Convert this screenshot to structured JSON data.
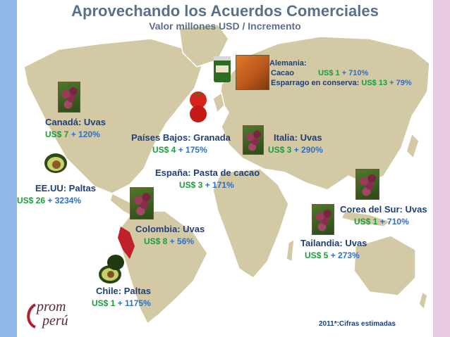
{
  "header": {
    "title": "Aprovechando los Acuerdos Comerciales",
    "subtitle": "Valor millones USD / Incremento"
  },
  "markets": {
    "canada": {
      "name": "Canadá: Uvas",
      "usd": "US$ 7",
      "inc": "+ 120%"
    },
    "eeuu": {
      "name": "EE.UU: Paltas",
      "usd": "US$ 26",
      "inc": "+ 3234%"
    },
    "paises_bajos": {
      "name": "Países Bajos: Granada",
      "usd": "US$ 4",
      "inc": "+ 175%"
    },
    "espana": {
      "name": "España: Pasta de cacao",
      "usd": "US$ 3",
      "inc": "+ 171%"
    },
    "italia": {
      "name": "Italia: Uvas",
      "usd": "US$ 3",
      "inc": "+ 290%"
    },
    "alemania": {
      "name": "Alemania:",
      "cacao_label": "Cacao",
      "cacao_usd": "US$ 1",
      "cacao_inc": "+ 710%",
      "esparrago_label": "Esparrago en conserva:",
      "esparrago_usd": "US$ 13",
      "esparrago_inc": "+ 79%"
    },
    "colombia": {
      "name": "Colombia: Uvas",
      "usd": "US$ 8",
      "inc": "+ 56%"
    },
    "corea": {
      "name": "Corea del Sur: Uvas",
      "usd": "US$ 1",
      "inc": "+ 710%"
    },
    "tailandia": {
      "name": "Tailandia: Uvas",
      "usd": "US$ 5",
      "inc": "+ 273%"
    },
    "chile": {
      "name": "Chile: Paltas",
      "usd": "US$ 1",
      "inc": "+ 1175%"
    }
  },
  "footer": {
    "logo_line1": "prom",
    "logo_line2": "perú",
    "note": "2011*:Cifras estimadas"
  },
  "colors": {
    "map_land": "#d3c9a4",
    "map_border": "#ffffff",
    "title": "#5a6f8a",
    "country": "#1f3f7a",
    "usd": "#1a9e3a",
    "increment": "#2f6fc6",
    "peru_highlight": "#c0202a"
  }
}
